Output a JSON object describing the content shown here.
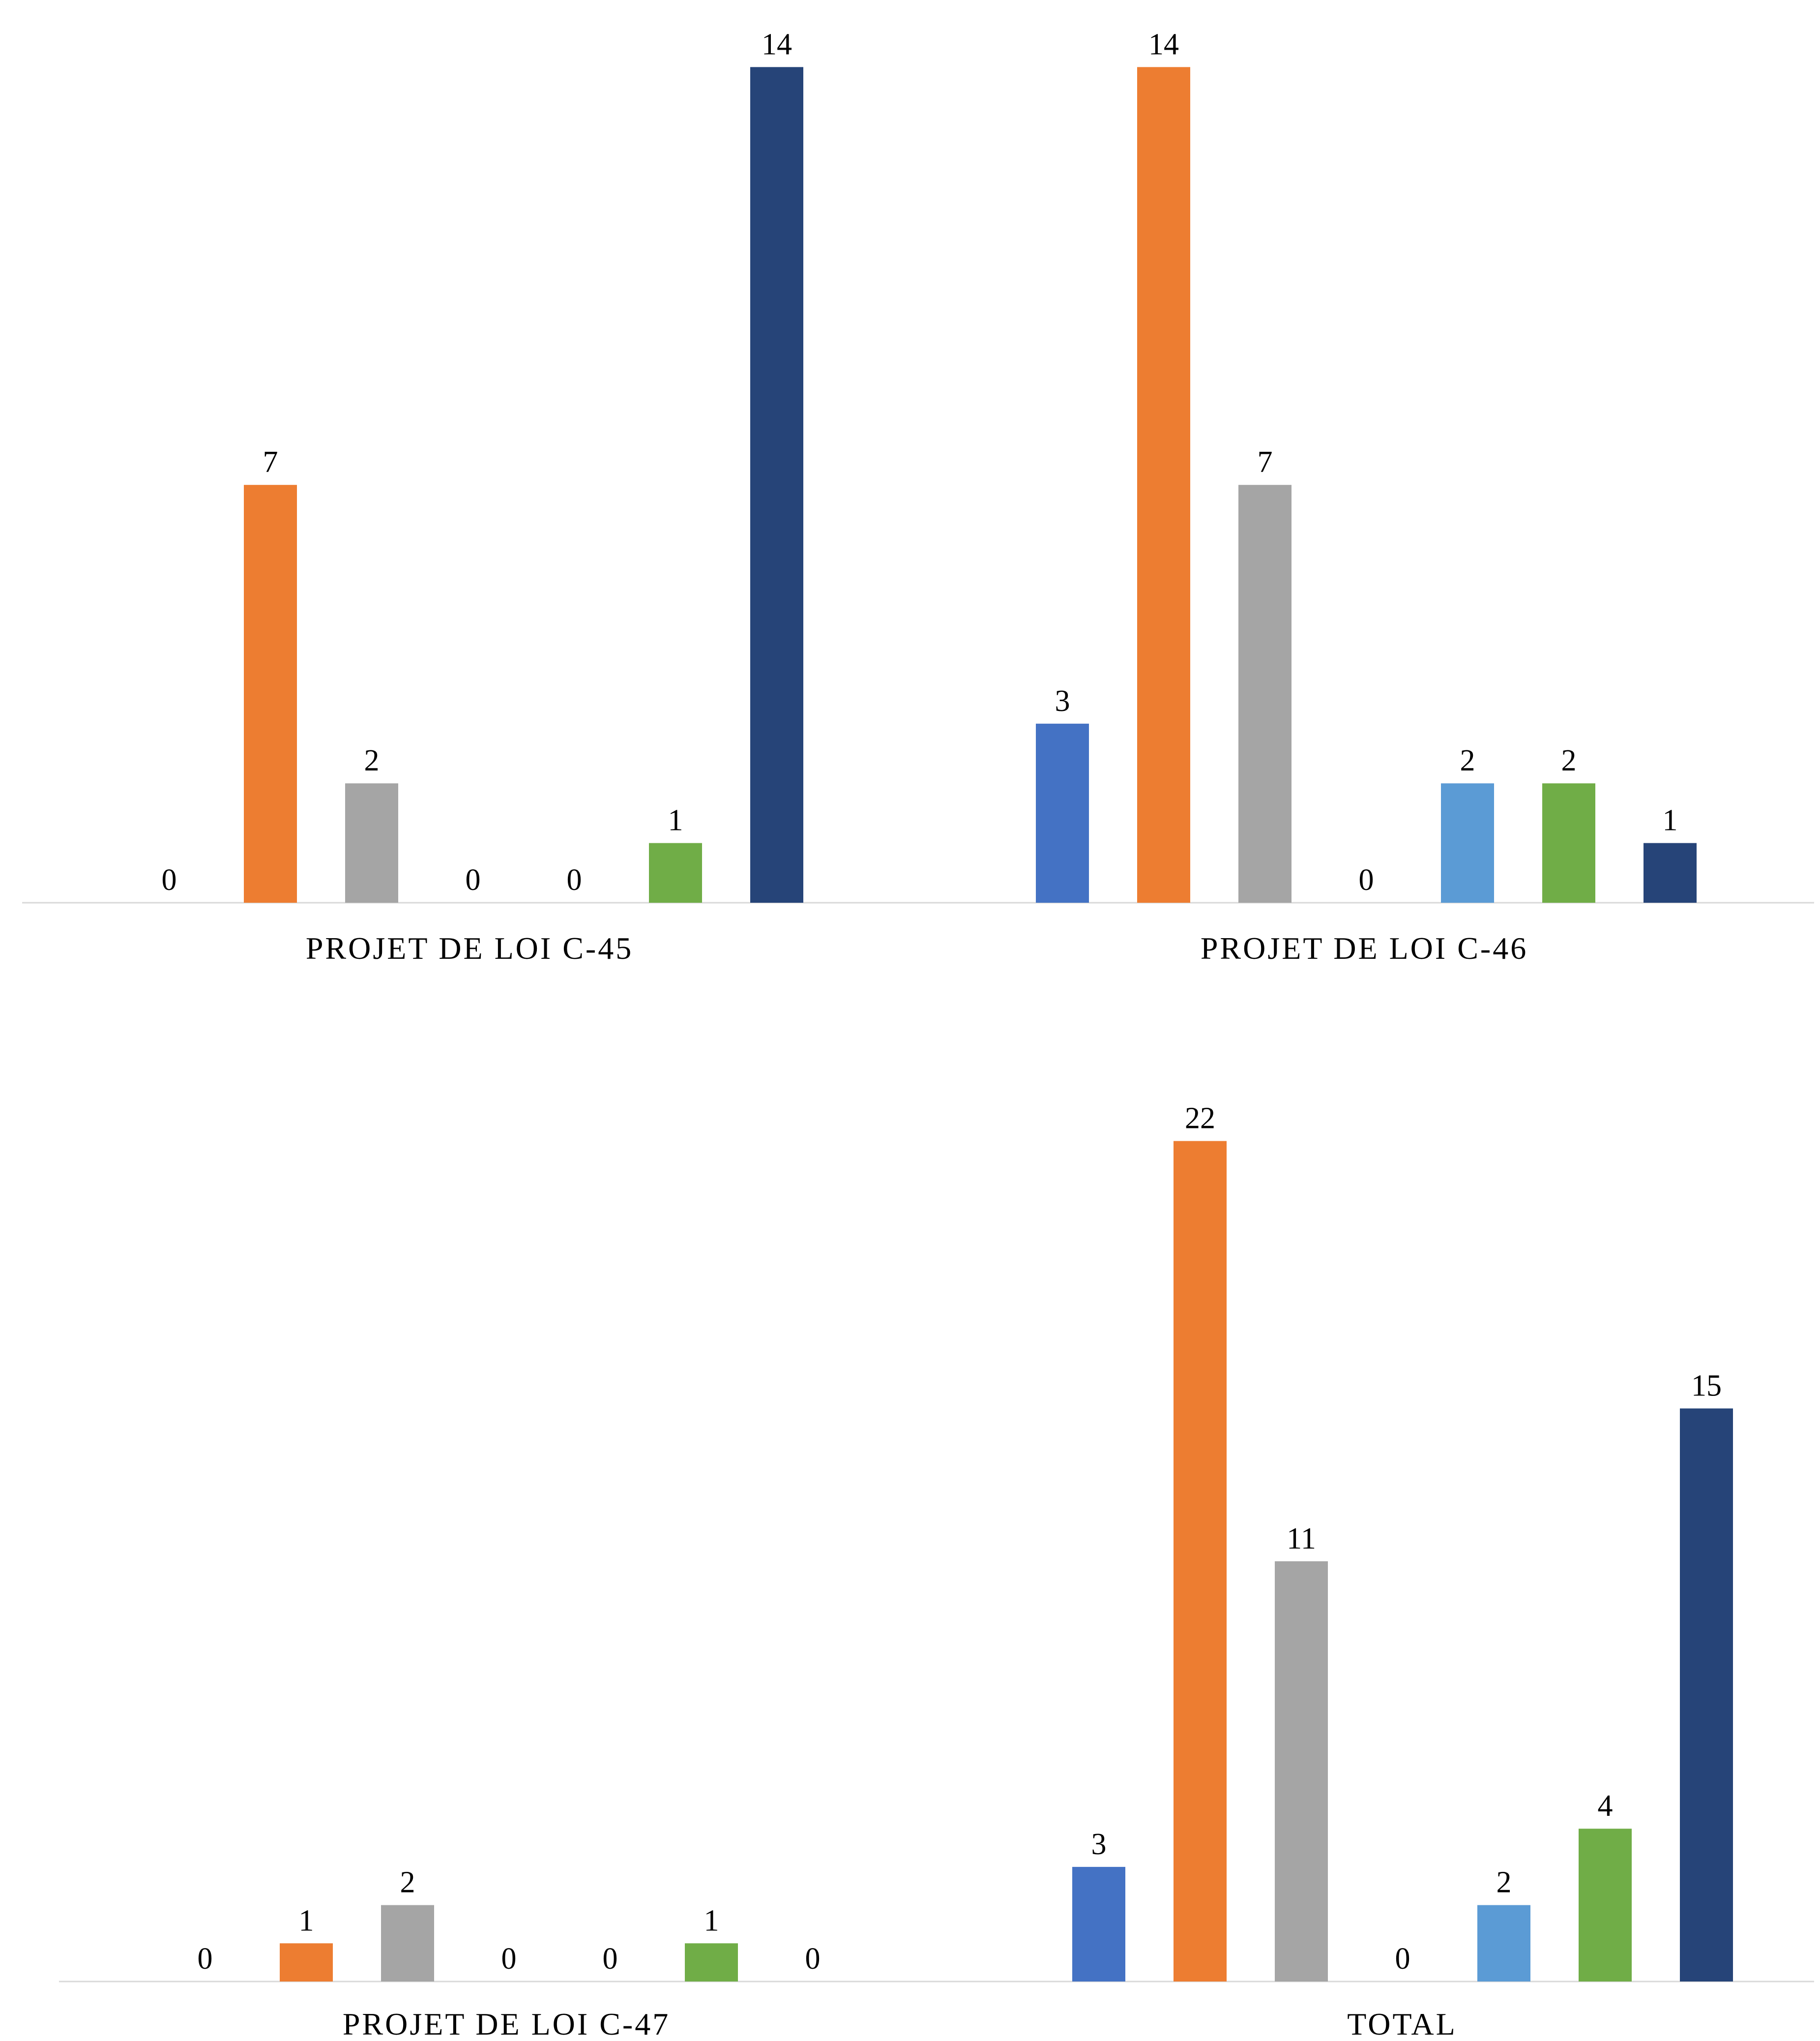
{
  "colors": {
    "series": [
      "#4472C4",
      "#ED7D31",
      "#A5A5A5",
      "#FFC000",
      "#5B9BD5",
      "#70AD47",
      "#264478"
    ],
    "baseline": "#D9D9D9"
  },
  "chart_data": {
    "type": "bar",
    "title": "",
    "xlabel": "",
    "ylabel": "",
    "grid": false,
    "legend": "none",
    "categories": [
      "PROJET DE LOI C-45",
      "PROJET DE LOI C-46",
      "PROJET DE LOI C-47",
      "TOTAL"
    ],
    "series": [
      {
        "values": [
          0,
          3,
          0,
          3
        ]
      },
      {
        "values": [
          7,
          14,
          1,
          22
        ]
      },
      {
        "values": [
          2,
          7,
          2,
          11
        ]
      },
      {
        "values": [
          0,
          0,
          0,
          0
        ]
      },
      {
        "values": [
          0,
          2,
          0,
          2
        ]
      },
      {
        "values": [
          1,
          2,
          1,
          4
        ]
      },
      {
        "values": [
          14,
          1,
          0,
          15
        ]
      }
    ]
  }
}
